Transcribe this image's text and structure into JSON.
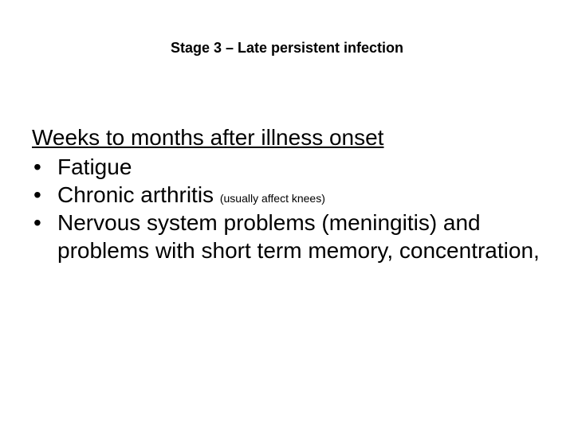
{
  "title": "Stage 3 – Late persistent infection",
  "subtitle": "Weeks to months after illness onset",
  "bullets": [
    {
      "text": "Fatigue",
      "note": ""
    },
    {
      "text": "Chronic arthritis ",
      "note": "(usually affect knees)"
    },
    {
      "text": "Nervous system problems (meningitis) and problems with short term memory, concentration,",
      "note": ""
    }
  ],
  "colors": {
    "background": "#ffffff",
    "text": "#000000"
  },
  "fonts": {
    "title_size": 18,
    "body_size": 28,
    "note_size": 14,
    "family": "Arial"
  }
}
